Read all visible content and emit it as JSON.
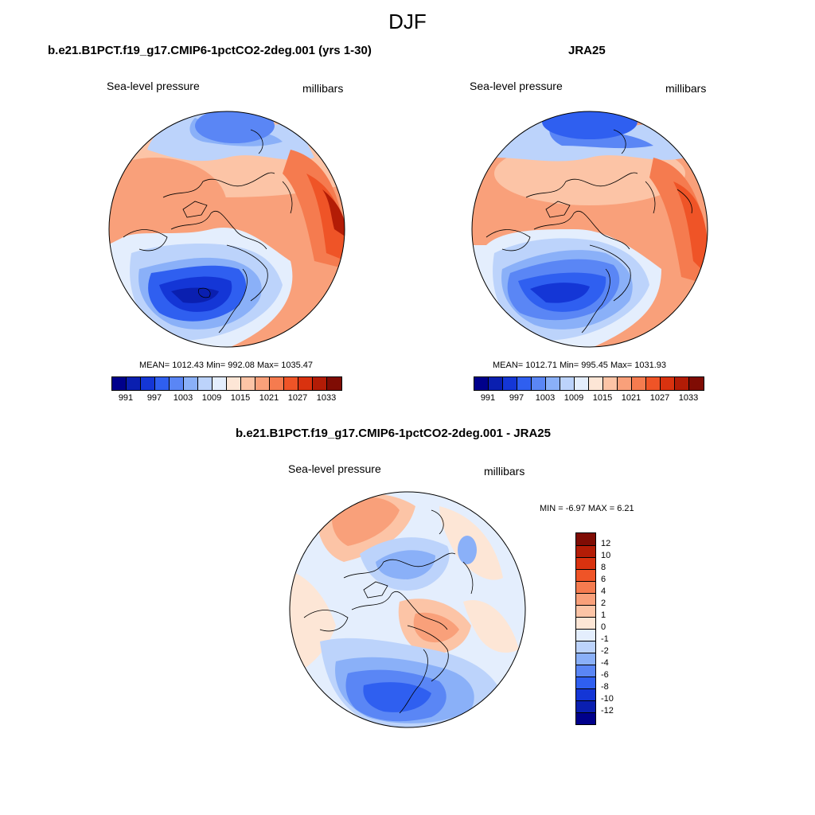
{
  "season": "DJF",
  "panels": [
    {
      "title": "b.e21.B1PCT.f19_g17.CMIP6-1pctCO2-2deg.001 (yrs 1-30)",
      "variable": "Sea-level pressure",
      "units": "millibars",
      "stats": "MEAN= 1012.43  Min= 992.08  Max= 1035.47"
    },
    {
      "title": "JRA25",
      "variable": "Sea-level pressure",
      "units": "millibars",
      "stats": "MEAN= 1012.71  Min= 995.45  Max= 1031.93"
    },
    {
      "title": "b.e21.B1PCT.f19_g17.CMIP6-1pctCO2-2deg.001 - JRA25",
      "variable": "Sea-level pressure",
      "units": "millibars",
      "stats": "MIN =  -6.97 MAX =   6.21"
    }
  ],
  "colorbar_abs": {
    "colors": [
      "#00008b",
      "#0a1fb0",
      "#1436d6",
      "#2f5ff0",
      "#5a86f5",
      "#8ab0f8",
      "#bcd3fb",
      "#e4eefd",
      "#fde6d6",
      "#fcc4a6",
      "#f9a07a",
      "#f57b4f",
      "#ef5427",
      "#d9320f",
      "#b31c06",
      "#7f0c04"
    ],
    "tick_labels": [
      "991",
      "997",
      "1003",
      "1009",
      "1015",
      "1021",
      "1027",
      "1033"
    ]
  },
  "colorbar_diff": {
    "colors": [
      "#00008b",
      "#0a1fb0",
      "#1436d6",
      "#2f5ff0",
      "#5a86f5",
      "#8ab0f8",
      "#bcd3fb",
      "#e4eefd",
      "#fde6d6",
      "#fcc4a6",
      "#f9a07a",
      "#f57b4f",
      "#ef5427",
      "#d9320f",
      "#b31c06",
      "#7f0c04"
    ],
    "tick_labels": [
      "-12",
      "-10",
      "-8",
      "-6",
      "-4",
      "-2",
      "-1",
      "0",
      "1",
      "2",
      "4",
      "6",
      "8",
      "10",
      "12"
    ]
  }
}
